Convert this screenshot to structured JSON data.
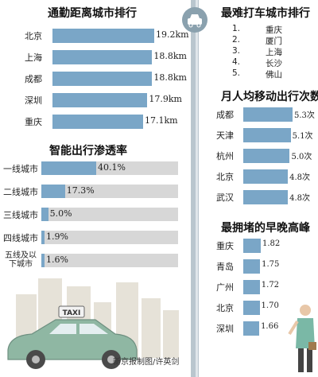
{
  "colors": {
    "bar": "#7aa6c7",
    "track": "#d7d7d7",
    "road": "#b9c6ce",
    "car": "#8fb7a3"
  },
  "icons": {
    "taxi_sign": "taxi-sign-icon",
    "badge": "car-badge-icon",
    "person": "person-with-briefcase-icon"
  },
  "taxi_sign_text": "TAXI",
  "credit": "新京报制图/许英剑",
  "chart_data": [
    {
      "type": "bar",
      "title": "通勤距离城市排行",
      "categories": [
        "北京",
        "上海",
        "成都",
        "深圳",
        "重庆"
      ],
      "values": [
        19.2,
        18.8,
        18.8,
        17.9,
        17.1
      ],
      "labels": [
        "19.2km",
        "18.8km",
        "18.8km",
        "17.9km",
        "17.1km"
      ],
      "xlim": [
        0,
        19.2
      ]
    },
    {
      "type": "bar",
      "title": "智能出行渗透率",
      "categories": [
        "一线城市",
        "二线城市",
        "三线城市",
        "四线城市",
        "五线及以下城市"
      ],
      "values": [
        40.1,
        17.3,
        5.0,
        1.9,
        1.6
      ],
      "labels": [
        "40.1%",
        "17.3%",
        "5.0%",
        "1.9%",
        "1.6%"
      ],
      "xlim": [
        0,
        100
      ]
    },
    {
      "type": "table",
      "title": "最难打车城市排行",
      "rows": [
        {
          "rank": "1.",
          "city": "重庆"
        },
        {
          "rank": "2.",
          "city": "厦门"
        },
        {
          "rank": "3.",
          "city": "上海"
        },
        {
          "rank": "4.",
          "city": "长沙"
        },
        {
          "rank": "5.",
          "city": "佛山"
        }
      ]
    },
    {
      "type": "bar",
      "title": "月人均移动出行次数",
      "categories": [
        "成都",
        "天津",
        "杭州",
        "北京",
        "武汉"
      ],
      "values": [
        5.3,
        5.1,
        5.0,
        4.8,
        4.8
      ],
      "labels": [
        "5.3次",
        "5.1次",
        "5.0次",
        "4.8次",
        "4.8次"
      ],
      "xlim": [
        0,
        5.3
      ]
    },
    {
      "type": "bar",
      "title": "最拥堵的早晚高峰",
      "categories": [
        "重庆",
        "青岛",
        "广州",
        "北京",
        "深圳"
      ],
      "values": [
        1.82,
        1.75,
        1.72,
        1.7,
        1.66
      ],
      "labels": [
        "1.82",
        "1.75",
        "1.72",
        "1.70",
        "1.66"
      ],
      "xlim": [
        0,
        1.82
      ]
    }
  ]
}
